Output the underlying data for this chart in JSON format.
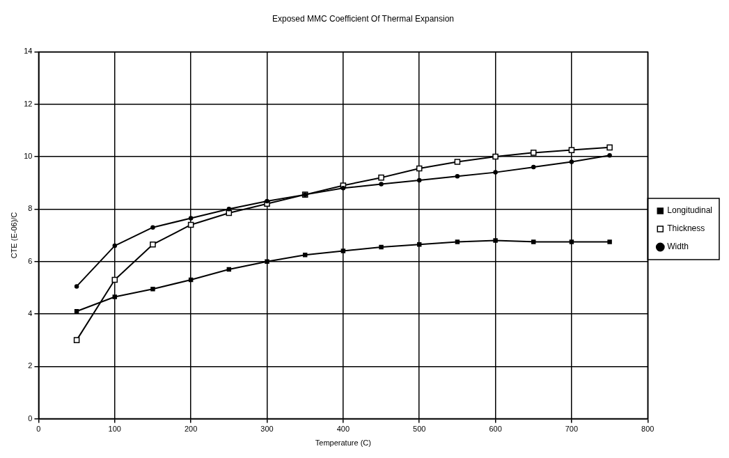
{
  "chart_data": {
    "type": "line",
    "title": "Exposed MMC Coefficient Of Thermal Expansion",
    "xlabel": "Temperature (C)",
    "ylabel": "CTE (E-06)/C",
    "x": [
      50,
      100,
      150,
      200,
      250,
      300,
      350,
      400,
      450,
      500,
      550,
      600,
      650,
      700,
      750
    ],
    "series": [
      {
        "name": "Longitudinal",
        "color": "#000000",
        "marker": "square",
        "values": [
          4.1,
          4.65,
          4.95,
          5.3,
          5.7,
          6.0,
          6.25,
          6.4,
          6.55,
          6.65,
          6.75,
          6.8,
          6.75,
          6.75,
          6.75
        ]
      },
      {
        "name": "Thickness",
        "color": "#000000",
        "marker": "square_open",
        "values": [
          3.0,
          5.3,
          6.65,
          7.4,
          7.85,
          8.2,
          8.55,
          8.9,
          9.2,
          9.55,
          9.8,
          10.0,
          10.15,
          10.25,
          10.35
        ]
      },
      {
        "name": "Width",
        "color": "#000000",
        "marker": "circle",
        "values": [
          5.05,
          6.6,
          7.3,
          7.65,
          8.0,
          8.3,
          8.55,
          8.8,
          8.95,
          9.1,
          9.25,
          9.4,
          9.6,
          9.8,
          10.05
        ]
      }
    ],
    "xlim": [
      0,
      800
    ],
    "xticks": [
      0,
      100,
      200,
      300,
      400,
      500,
      600,
      700,
      800
    ],
    "ylim": [
      0,
      14
    ],
    "yticks": [
      0,
      2,
      4,
      6,
      8,
      10,
      12,
      14
    ],
    "grid": true,
    "legend": "right",
    "line_style": "solid"
  }
}
